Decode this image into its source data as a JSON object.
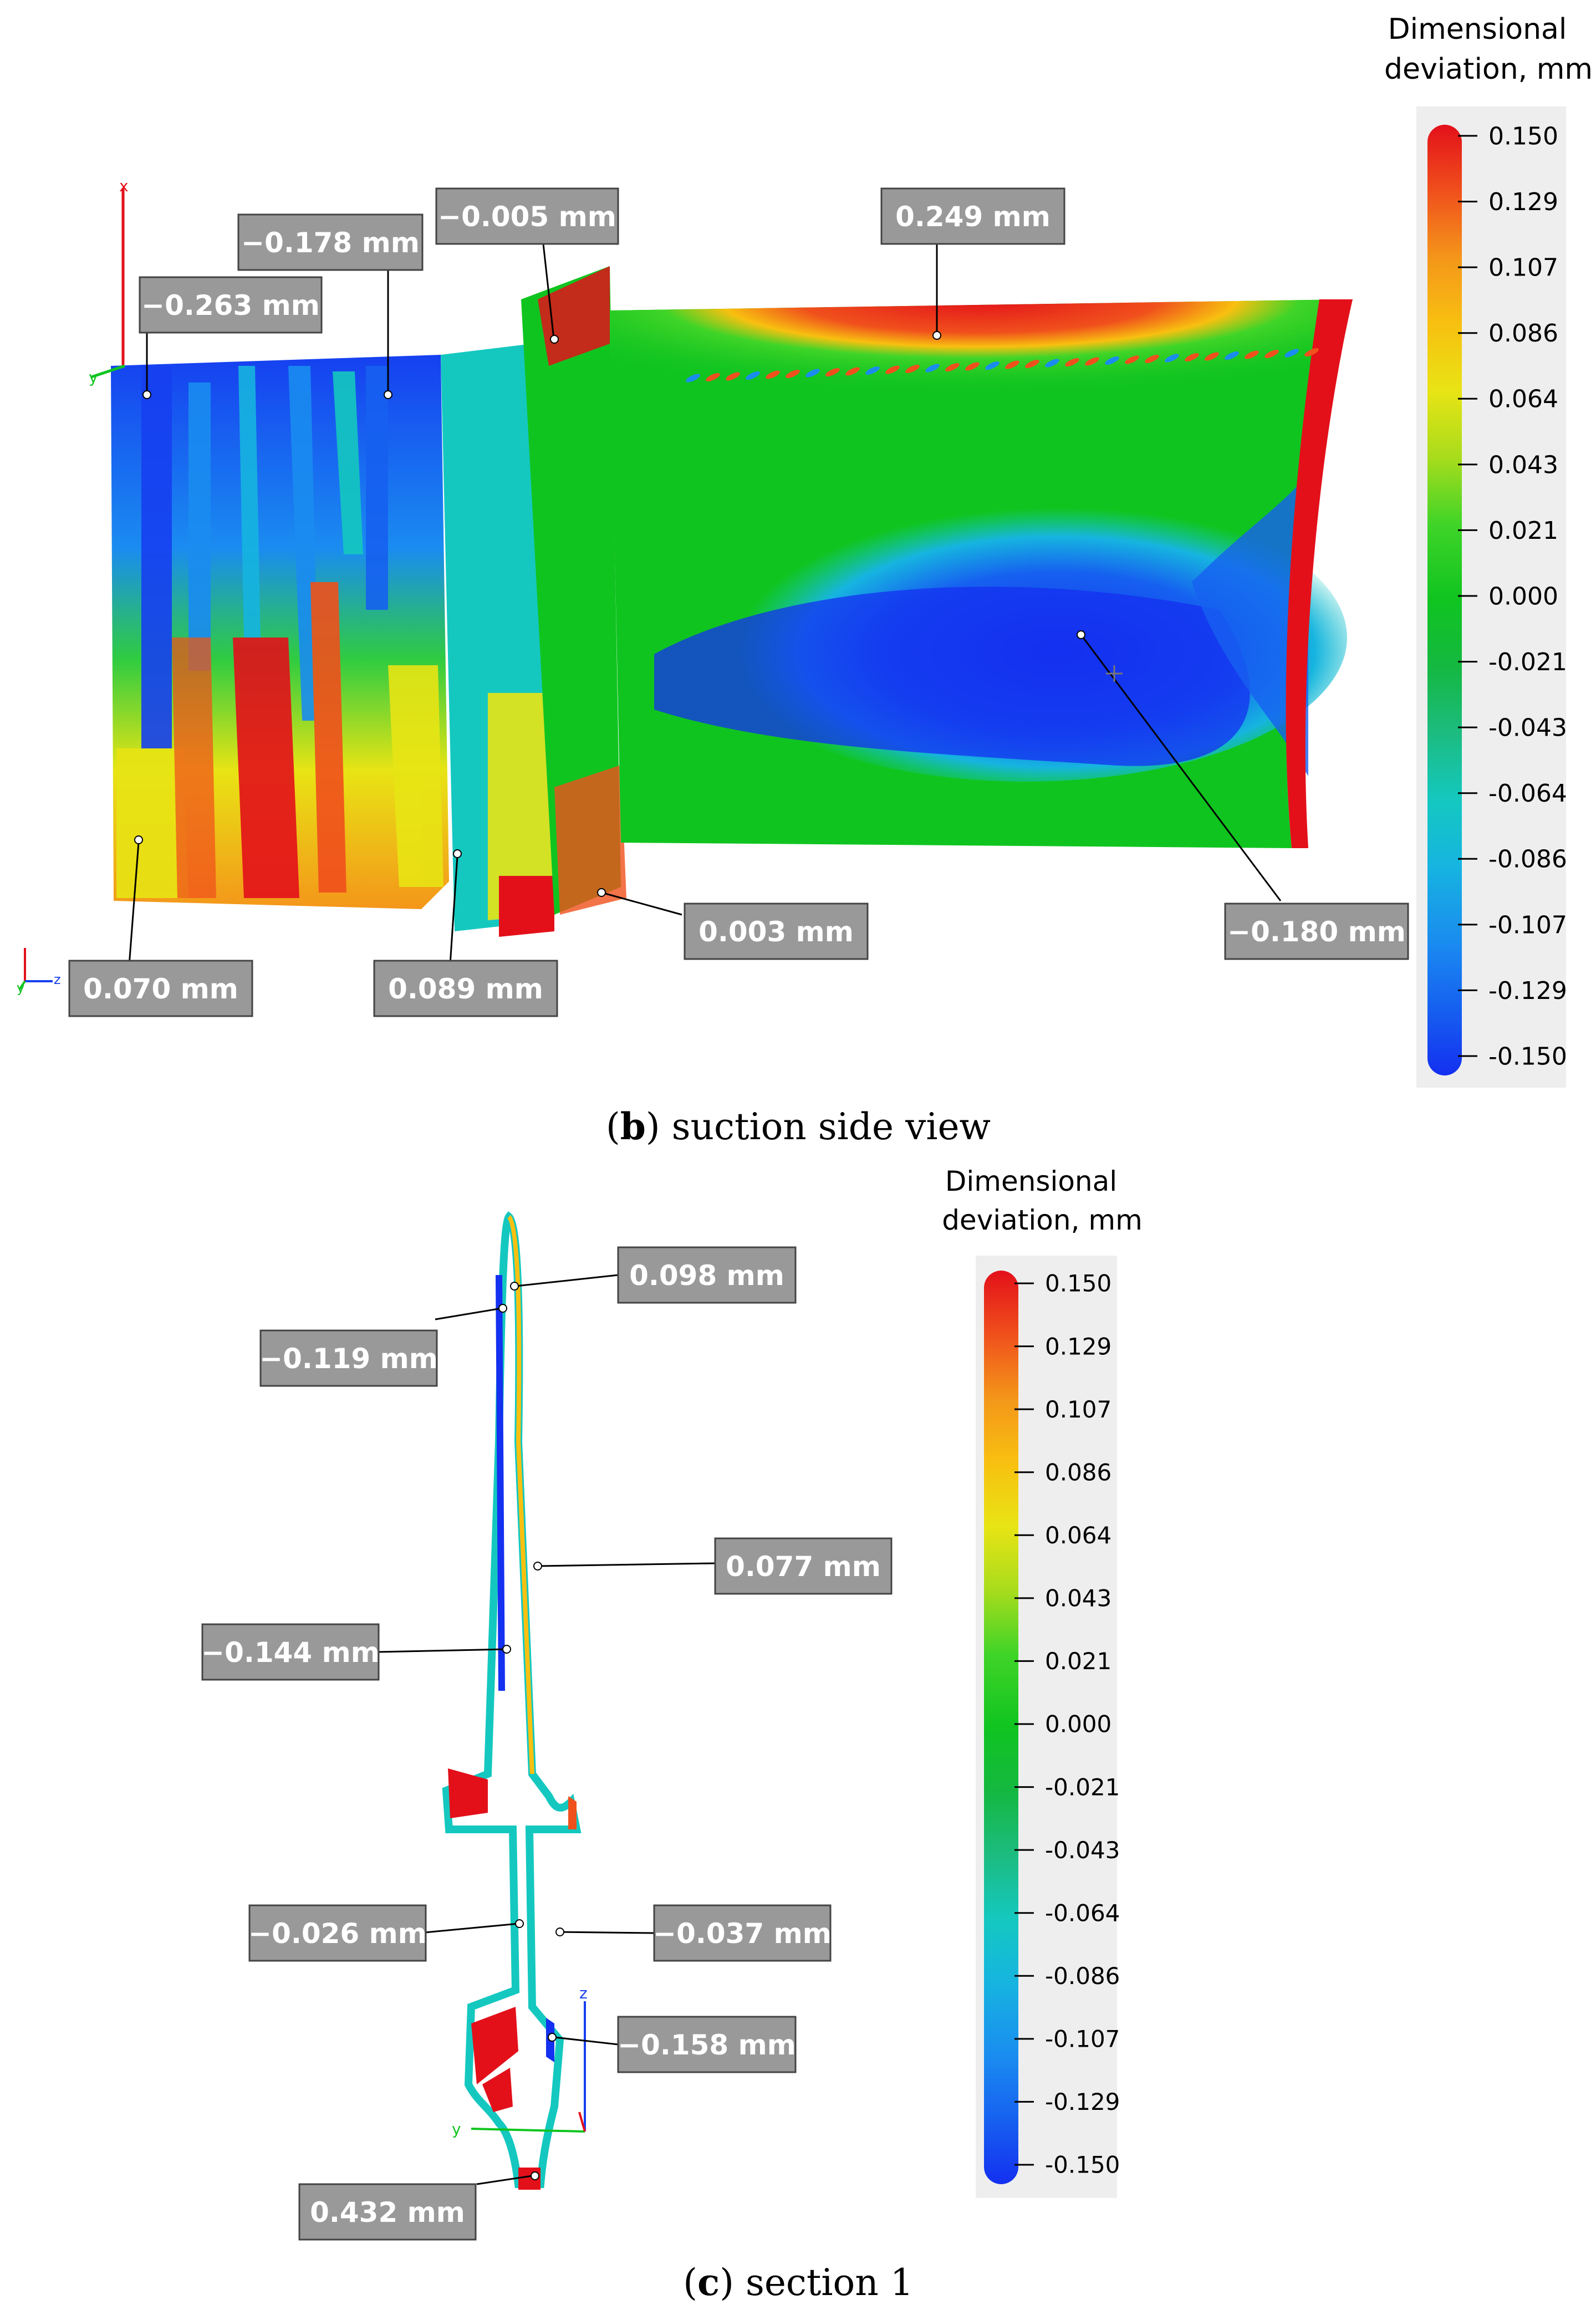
{
  "legend_title_line1": "Dimensional",
  "legend_title_line2": "deviation, mm",
  "legend_ticks": [
    "0.150",
    "0.129",
    "0.107",
    "0.086",
    "0.064",
    "0.043",
    "0.021",
    "0.000",
    "-0.021",
    "-0.043",
    "-0.064",
    "-0.086",
    "-0.107",
    "-0.129",
    "-0.150"
  ],
  "legend_colors": [
    "#e3101a",
    "#f0501c",
    "#f4961a",
    "#f8c010",
    "#e8e414",
    "#a8dc1c",
    "#40d428",
    "#10c420",
    "#14b840",
    "#1cbc80",
    "#14c8c0",
    "#16b4e0",
    "#1a8cf0",
    "#1660f0",
    "#1430f0"
  ],
  "panel_b": {
    "caption_letter": "b",
    "caption_text": ") suction side view",
    "callouts": [
      "−0.263 mm",
      "−0.178 mm",
      "−0.005 mm",
      "0.249 mm",
      "0.070 mm",
      "0.089 mm",
      "0.003 mm",
      "−0.180 mm"
    ]
  },
  "panel_c": {
    "caption_letter": "c",
    "caption_text": ") section 1",
    "callouts": [
      "0.098 mm",
      "−0.119 mm",
      "0.077 mm",
      "−0.144 mm",
      "−0.026 mm",
      "−0.037 mm",
      "−0.158 mm",
      "0.432 mm"
    ]
  },
  "axes_labels": {
    "x": "x",
    "y": "y",
    "z": "z"
  }
}
